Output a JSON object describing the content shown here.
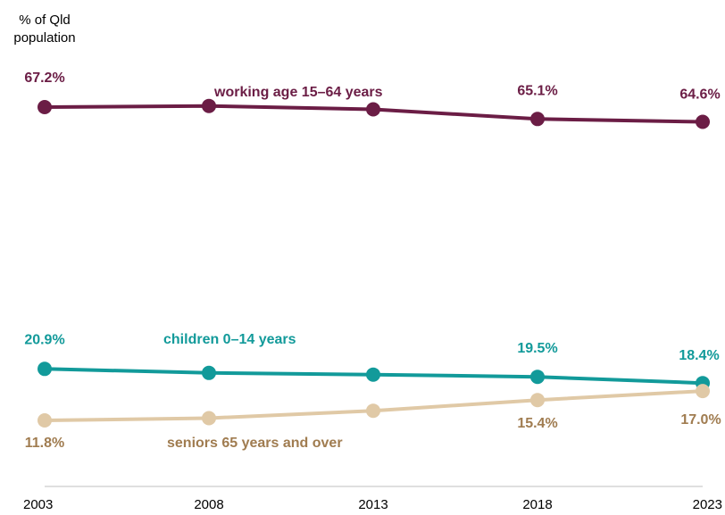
{
  "chart_data": {
    "type": "line",
    "ylabel": "% of Qld population",
    "ylabel_lines": [
      "% of Qld",
      "population"
    ],
    "categories": [
      "2003",
      "2008",
      "2013",
      "2018",
      "2023"
    ],
    "series": [
      {
        "name": "working age 15–64 years",
        "color": "#6b1d45",
        "values": [
          67.2,
          67.4,
          66.8,
          65.1,
          64.6
        ],
        "labels": [
          "67.2%",
          "",
          "",
          "65.1%",
          "64.6%"
        ]
      },
      {
        "name": "children 0–14 years",
        "color": "#129a9a",
        "values": [
          20.9,
          20.2,
          19.9,
          19.5,
          18.4
        ],
        "labels": [
          "20.9%",
          "",
          "",
          "19.5%",
          "18.4%"
        ]
      },
      {
        "name": "seniors 65 years and over",
        "color": "#e0c9a6",
        "label_color": "#a07c50",
        "values": [
          11.8,
          12.2,
          13.5,
          15.4,
          17.0
        ],
        "labels": [
          "11.8%",
          "",
          "",
          "15.4%",
          "17.0%"
        ]
      }
    ],
    "grid": false,
    "legend": "inline labels"
  }
}
